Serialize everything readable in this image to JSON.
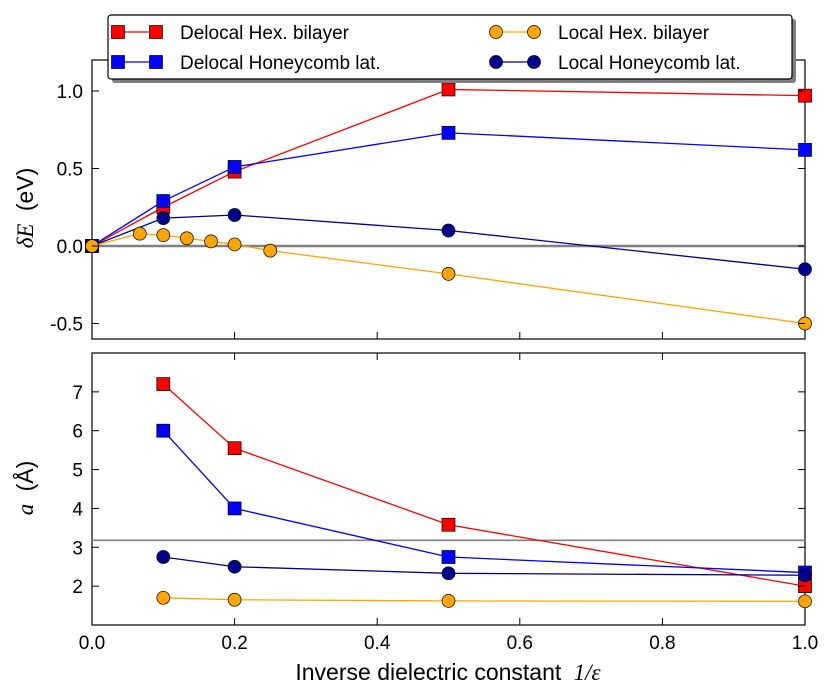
{
  "chart_data": {
    "type": "line",
    "xlabel": "Inverse dielectric constant",
    "xlabel_math": "1/ε",
    "xlim": [
      0.0,
      1.0
    ],
    "xticks": [
      "0.0",
      "0.2",
      "0.4",
      "0.6",
      "0.8",
      "1.0"
    ],
    "legend": {
      "placement": "top",
      "entries": [
        {
          "name": "Delocal Hex. bilayer",
          "color": "#ff0000",
          "marker": "square"
        },
        {
          "name": "Local Hex. bilayer",
          "color": "#ffa500",
          "marker": "circle"
        },
        {
          "name": "Delocal Honeycomb lat.",
          "color": "#0000ff",
          "marker": "square"
        },
        {
          "name": "Local Honeycomb lat.",
          "color": "#00008b",
          "marker": "circle"
        }
      ]
    },
    "panels": [
      {
        "ylabel_math": "δE",
        "ylabel_unit": "(eV)",
        "ylim": [
          -0.6,
          1.2
        ],
        "yticks": [
          "1.0",
          "0.5",
          "0.0",
          "-0.5"
        ],
        "ytick_values": [
          1.0,
          0.5,
          0.0,
          -0.5
        ],
        "hline": {
          "y": 0.0,
          "color": "#808080"
        },
        "series": [
          {
            "name": "Delocal Hex. bilayer",
            "color": "#ff0000",
            "marker": "square",
            "x": [
              0.0,
              0.1,
              0.2,
              0.5,
              1.0
            ],
            "y": [
              0.0,
              0.25,
              0.48,
              1.01,
              0.97
            ]
          },
          {
            "name": "Delocal Honeycomb lat.",
            "color": "#0000ff",
            "marker": "square",
            "x": [
              0.0,
              0.1,
              0.2,
              0.5,
              1.0
            ],
            "y": [
              0.0,
              0.29,
              0.51,
              0.73,
              0.62
            ]
          },
          {
            "name": "Local Honeycomb lat.",
            "color": "#00008b",
            "marker": "circle",
            "x": [
              0.0,
              0.1,
              0.2,
              0.5,
              1.0
            ],
            "y": [
              0.0,
              0.18,
              0.2,
              0.1,
              -0.15
            ]
          },
          {
            "name": "Local Hex. bilayer",
            "color": "#ffa500",
            "marker": "circle",
            "x": [
              0.0,
              0.067,
              0.1,
              0.133,
              0.167,
              0.2,
              0.25,
              0.5,
              1.0
            ],
            "y": [
              0.0,
              0.08,
              0.07,
              0.05,
              0.03,
              0.01,
              -0.03,
              -0.18,
              -0.5
            ]
          }
        ]
      },
      {
        "ylabel_math": "a",
        "ylabel_unit": "(Å)",
        "ylim": [
          1.0,
          8.0
        ],
        "yticks": [
          "7",
          "6",
          "5",
          "4",
          "3",
          "2"
        ],
        "ytick_values": [
          7,
          6,
          5,
          4,
          3,
          2
        ],
        "hline": {
          "y": 3.18,
          "color": "#808080"
        },
        "series": [
          {
            "name": "Delocal Hex. bilayer",
            "color": "#ff0000",
            "marker": "square",
            "x": [
              0.1,
              0.2,
              0.5,
              1.0
            ],
            "y": [
              7.2,
              5.55,
              3.58,
              2.0
            ]
          },
          {
            "name": "Delocal Honeycomb lat.",
            "color": "#0000ff",
            "marker": "square",
            "x": [
              0.1,
              0.2,
              0.5,
              1.0
            ],
            "y": [
              6.0,
              4.0,
              2.75,
              2.35
            ]
          },
          {
            "name": "Local Honeycomb lat.",
            "color": "#00008b",
            "marker": "circle",
            "x": [
              0.1,
              0.2,
              0.5,
              1.0
            ],
            "y": [
              2.75,
              2.5,
              2.33,
              2.28
            ]
          },
          {
            "name": "Local Hex. bilayer",
            "color": "#ffa500",
            "marker": "circle",
            "x": [
              0.1,
              0.2,
              0.5,
              1.0
            ],
            "y": [
              1.7,
              1.65,
              1.62,
              1.61
            ]
          }
        ]
      }
    ]
  }
}
